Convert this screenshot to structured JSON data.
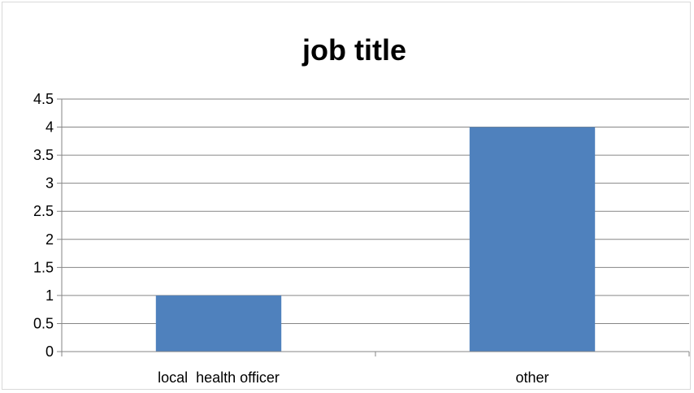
{
  "chart_data": {
    "type": "bar",
    "title": "job title",
    "xlabel": "",
    "ylabel": "",
    "categories": [
      "local  health officer",
      "other"
    ],
    "values": [
      1,
      4
    ],
    "ylim": [
      0,
      4.5
    ],
    "yticks": [
      "0",
      "0.5",
      "1",
      "1.5",
      "2",
      "2.5",
      "3",
      "3.5",
      "4",
      "4.5"
    ],
    "grid": true,
    "legend": "none",
    "bar_color": "#4f81bd",
    "gridline_color": "#868686"
  }
}
